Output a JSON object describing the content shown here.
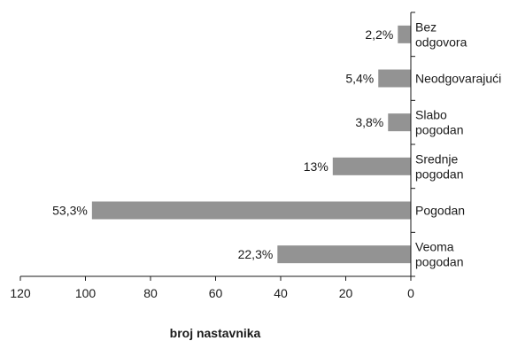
{
  "chart_data": {
    "type": "bar",
    "orientation": "horizontal",
    "x_direction": "reversed",
    "xlabel": "broj nastavnika",
    "xlim": [
      0,
      120
    ],
    "xticks": [
      "120",
      "100",
      "80",
      "60",
      "40",
      "20",
      "0"
    ],
    "categories": [
      {
        "lines": [
          "Bez",
          "odgovora"
        ]
      },
      {
        "lines": [
          "Neodgovarajući"
        ]
      },
      {
        "lines": [
          "Slabo",
          "pogodan"
        ]
      },
      {
        "lines": [
          "Srednje",
          "pogodan"
        ]
      },
      {
        "lines": [
          "Pogodan"
        ]
      },
      {
        "lines": [
          "Veoma",
          "pogodan"
        ]
      }
    ],
    "values": [
      4,
      10,
      7,
      24,
      98,
      41
    ],
    "data_labels": [
      "2,2%",
      "5,4%",
      "3,8%",
      "13%",
      "53,3%",
      "22,3%"
    ],
    "bar_color": "#939393"
  }
}
